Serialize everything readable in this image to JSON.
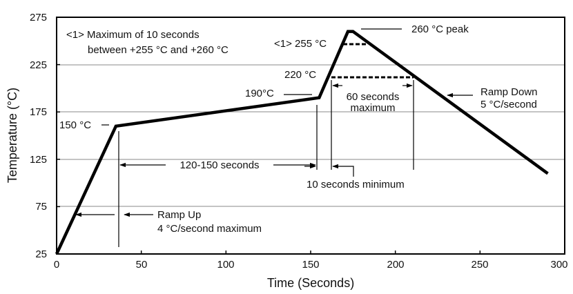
{
  "chart_data": {
    "type": "line",
    "title": "",
    "xlabel": "Time (Seconds)",
    "ylabel": "Temperature (°C)",
    "xlim": [
      0,
      300
    ],
    "ylim": [
      25,
      275
    ],
    "xticks": [
      "0",
      "50",
      "100",
      "150",
      "200",
      "250",
      "300"
    ],
    "yticks": [
      "25",
      "75",
      "125",
      "175",
      "225",
      "275"
    ],
    "grid": "horizontal",
    "legend": "none",
    "colors": {
      "line": "#000000",
      "grid": "#888888",
      "frame": "#000000"
    },
    "series": [
      {
        "x": [
          0,
          35,
          155,
          172,
          175,
          290
        ],
        "y": [
          25,
          160,
          190,
          260,
          260,
          110
        ]
      }
    ],
    "annotations": [
      {
        "text": "<1> Maximum of 10 seconds",
        "kind": "note"
      },
      {
        "text": "between +255 °C and +260 °C",
        "kind": "note"
      },
      {
        "text": "<1> 255 °C",
        "kind": "level"
      },
      {
        "text": "260 °C  peak",
        "kind": "level"
      },
      {
        "text": "220 °C",
        "kind": "level"
      },
      {
        "text": "190°C",
        "kind": "level"
      },
      {
        "text": "150 °C",
        "kind": "level"
      },
      {
        "text": "60 seconds",
        "kind": "duration"
      },
      {
        "text": "maximum",
        "kind": "duration"
      },
      {
        "text": "Ramp Down",
        "kind": "rate"
      },
      {
        "text": "5 °C/second",
        "kind": "rate"
      },
      {
        "text": "120-150 seconds",
        "kind": "duration"
      },
      {
        "text": "10 seconds minimum",
        "kind": "duration"
      },
      {
        "text": "Ramp Up",
        "kind": "rate"
      },
      {
        "text": "4 °C/second maximum",
        "kind": "rate"
      }
    ]
  }
}
